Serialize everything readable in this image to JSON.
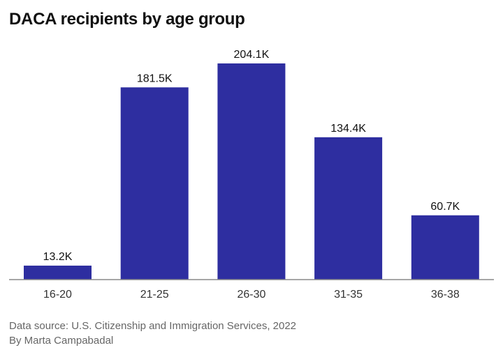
{
  "chart_data": {
    "type": "bar",
    "title": "DACA recipients by age group",
    "categories": [
      "16-20",
      "21-25",
      "26-30",
      "31-35",
      "36-38"
    ],
    "values": [
      13.2,
      181.5,
      204.1,
      134.4,
      60.7
    ],
    "data_labels": [
      "13.2K",
      "181.5K",
      "204.1K",
      "134.4K",
      "60.7K"
    ],
    "unit": "thousands",
    "ylim": [
      0,
      210
    ],
    "grid": false,
    "bar_color": "#2e2ea0",
    "source": "Data source: U.S. Citizenship and Immigration Services, 2022",
    "byline": "By Marta Campabadal"
  }
}
